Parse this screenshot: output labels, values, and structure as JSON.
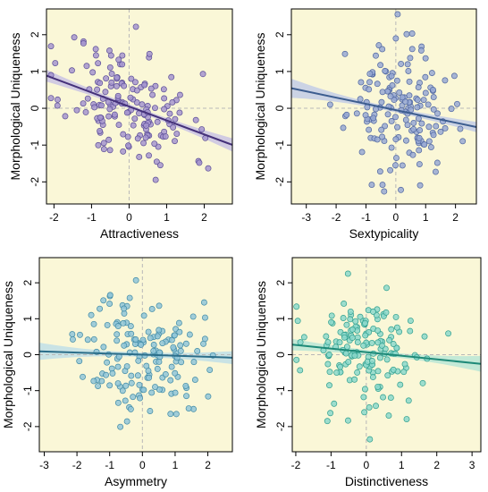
{
  "chart_data": [
    {
      "type": "scatter",
      "xlabel": "Attractiveness",
      "ylabel": "Morphological Uniqueness",
      "xlim": [
        -2.2,
        2.75
      ],
      "ylim": [
        -2.6,
        2.7
      ],
      "xticks": [
        -2,
        -1,
        0,
        1,
        2
      ],
      "yticks": [
        -2,
        -1,
        0,
        1,
        2
      ],
      "point_color": "#a595cf",
      "point_edge": "#5b4d97",
      "line_color": "#45317a",
      "band_color": "#c9c3e4",
      "bg_color": "#faf7d7",
      "regression": {
        "intercept": 0.05,
        "slope": -0.38,
        "band_halfwidth": [
          0.16,
          0.06,
          0.18
        ]
      },
      "seed": 11,
      "n": 160,
      "cloud": {
        "x_mean": 0.0,
        "x_sd": 0.85,
        "y_sd": 0.82
      }
    },
    {
      "type": "scatter",
      "xlabel": "Sextypicality",
      "ylabel": "Morphological Uniqueness",
      "xlim": [
        -3.5,
        2.7
      ],
      "ylim": [
        -2.6,
        2.7
      ],
      "xticks": [
        -3,
        -2,
        -1,
        0,
        1,
        2
      ],
      "yticks": [
        -2,
        -1,
        0,
        1,
        2
      ],
      "point_color": "#98a9d3",
      "point_edge": "#4f66a0",
      "line_color": "#3c5d8f",
      "band_color": "#c2cde6",
      "bg_color": "#faf7d7",
      "regression": {
        "intercept": -0.05,
        "slope": -0.17,
        "band_halfwidth": [
          0.26,
          0.06,
          0.14
        ]
      },
      "seed": 23,
      "n": 160,
      "cloud": {
        "x_mean": 0.1,
        "x_sd": 0.85,
        "y_sd": 0.85
      }
    },
    {
      "type": "scatter",
      "xlabel": "Asymmetry",
      "ylabel": "Morphological Uniqueness",
      "xlim": [
        -3.15,
        2.75
      ],
      "ylim": [
        -2.7,
        2.7
      ],
      "xticks": [
        -3,
        -2,
        -1,
        0,
        1,
        2
      ],
      "yticks": [
        -2,
        -1,
        0,
        1,
        2
      ],
      "point_color": "#90c5d8",
      "point_edge": "#3f8aa6",
      "line_color": "#2b6e8a",
      "band_color": "#bfdfe7",
      "bg_color": "#faf7d7",
      "regression": {
        "intercept": 0.0,
        "slope": -0.03,
        "band_halfwidth": [
          0.24,
          0.06,
          0.18
        ]
      },
      "seed": 37,
      "n": 160,
      "cloud": {
        "x_mean": 0.0,
        "x_sd": 0.9,
        "y_sd": 0.85
      }
    },
    {
      "type": "scatter",
      "xlabel": "Distinctiveness",
      "ylabel": "Morphological Uniqueness",
      "xlim": [
        -2.1,
        3.25
      ],
      "ylim": [
        -2.7,
        2.7
      ],
      "xticks": [
        -2,
        -1,
        0,
        1,
        2,
        3
      ],
      "yticks": [
        -2,
        -1,
        0,
        1,
        2
      ],
      "point_color": "#8cd8cb",
      "point_edge": "#2f9f8e",
      "line_color": "#1e8a78",
      "band_color": "#b9e6d6",
      "bg_color": "#faf7d7",
      "regression": {
        "intercept": 0.07,
        "slope": -0.1,
        "band_halfwidth": [
          0.16,
          0.06,
          0.22
        ]
      },
      "seed": 53,
      "n": 160,
      "cloud": {
        "x_mean": 0.0,
        "x_sd": 0.85,
        "y_sd": 0.85
      }
    }
  ]
}
